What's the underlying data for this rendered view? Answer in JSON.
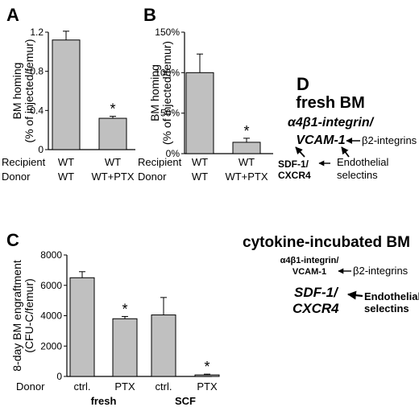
{
  "chart_data": [
    {
      "panel": "A",
      "type": "bar",
      "ylabel": "BM homing\n(% of injected/femur)",
      "ylim": [
        0,
        1.2
      ],
      "yticks": [
        "0",
        "0.4",
        "0.8",
        "1.2"
      ],
      "ytick_values": [
        0,
        0.4,
        0.8,
        1.2
      ],
      "categories": [
        "WT|WT",
        "WT|WT+PTX"
      ],
      "values": [
        1.12,
        0.32
      ],
      "errors": [
        0.09,
        0.02
      ],
      "significance": [
        "",
        "*"
      ],
      "row_labels": [
        "Recipient",
        "Donor"
      ],
      "recipient": [
        "WT",
        "WT"
      ],
      "donor": [
        "WT",
        "WT+PTX"
      ],
      "bar_color": "#c0c0c0"
    },
    {
      "panel": "B",
      "type": "bar",
      "ylabel": "BM homing\n(% of injected/femur)",
      "ylim": [
        0,
        150
      ],
      "yticks": [
        "0%",
        "50%",
        "100%",
        "150%"
      ],
      "ytick_values": [
        0,
        50,
        100,
        150
      ],
      "categories": [
        "WT|WT",
        "WT|WT+PTX"
      ],
      "values": [
        100,
        14
      ],
      "errors": [
        23,
        5
      ],
      "significance": [
        "",
        "*"
      ],
      "row_labels": [
        "Recipient",
        "Donor"
      ],
      "recipient": [
        "WT",
        "WT"
      ],
      "donor": [
        "WT",
        "WT+PTX"
      ],
      "bar_color": "#c0c0c0"
    },
    {
      "panel": "C",
      "type": "bar",
      "ylabel": "8-day BM engraftment\n(CFU-C/femur)",
      "ylim": [
        0,
        8000
      ],
      "yticks": [
        "0",
        "2000",
        "4000",
        "6000",
        "8000"
      ],
      "ytick_values": [
        0,
        2000,
        4000,
        6000,
        8000
      ],
      "categories": [
        "ctrl.",
        "PTX",
        "ctrl.",
        "PTX"
      ],
      "groups": [
        "fresh",
        "SCF"
      ],
      "values": [
        6500,
        3800,
        4050,
        100
      ],
      "errors": [
        400,
        150,
        1150,
        50
      ],
      "significance": [
        "",
        "*",
        "",
        "*"
      ],
      "row_label": "Donor",
      "bar_color": "#c0c0c0"
    }
  ],
  "panel_labels": {
    "a": "A",
    "b": "B",
    "c": "C",
    "d": "D"
  },
  "diagram": {
    "fresh_title": "fresh BM",
    "fresh_main_1": "α4β1-integrin/",
    "fresh_main_2": "VCAM-1",
    "fresh_b2": "β2-integrins",
    "fresh_sdf_1": "SDF-1/",
    "fresh_sdf_2": "CXCR4",
    "fresh_endo_1": "Endothelial",
    "fresh_endo_2": "selectins",
    "cyto_title": "cytokine-incubated BM",
    "cyto_main_1": "α4β1-integrin/",
    "cyto_main_2": "VCAM-1",
    "cyto_b2": "β2-integrins",
    "cyto_sdf_1": "SDF-1/",
    "cyto_sdf_2": "CXCR4",
    "cyto_endo_1": "Endothelial",
    "cyto_endo_2": "selectins"
  }
}
